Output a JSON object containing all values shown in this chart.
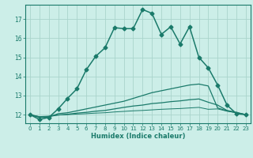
{
  "title": "",
  "xlabel": "Humidex (Indice chaleur)",
  "ylabel": "",
  "bg_color": "#cceee8",
  "line_color": "#1a7a6a",
  "grid_color": "#aad4cc",
  "xlim": [
    -0.5,
    23.5
  ],
  "ylim": [
    11.55,
    17.75
  ],
  "yticks": [
    12,
    13,
    14,
    15,
    16,
    17
  ],
  "xticks": [
    0,
    1,
    2,
    3,
    4,
    5,
    6,
    7,
    8,
    9,
    10,
    11,
    12,
    13,
    14,
    15,
    16,
    17,
    18,
    19,
    20,
    21,
    22,
    23
  ],
  "series": [
    {
      "x": [
        0,
        1,
        2,
        3,
        4,
        5,
        6,
        7,
        8,
        9,
        10,
        11,
        12,
        13,
        14,
        15,
        16,
        17,
        18,
        19,
        20,
        21,
        22,
        23
      ],
      "y": [
        12.0,
        11.75,
        11.85,
        12.3,
        12.85,
        13.35,
        14.35,
        15.05,
        15.5,
        16.55,
        16.5,
        16.5,
        17.5,
        17.3,
        16.2,
        16.6,
        15.7,
        16.6,
        15.0,
        14.45,
        13.55,
        12.5,
        12.05,
        12.0
      ],
      "marker": "D",
      "markersize": 2.5,
      "linewidth": 1.1,
      "linestyle": "-",
      "dotted_end": false
    },
    {
      "x": [
        0,
        1,
        2,
        3,
        4,
        5,
        6,
        7,
        8,
        9,
        10,
        11,
        12,
        13,
        14,
        15,
        16,
        17,
        18,
        19,
        20,
        21,
        22,
        23
      ],
      "y": [
        12.0,
        11.85,
        11.88,
        12.05,
        12.1,
        12.2,
        12.3,
        12.4,
        12.5,
        12.6,
        12.7,
        12.85,
        13.0,
        13.15,
        13.25,
        13.35,
        13.45,
        13.55,
        13.6,
        13.5,
        12.35,
        12.2,
        12.1,
        12.0
      ],
      "marker": null,
      "markersize": 0,
      "linewidth": 0.9,
      "linestyle": "-"
    },
    {
      "x": [
        0,
        1,
        2,
        3,
        4,
        5,
        6,
        7,
        8,
        9,
        10,
        11,
        12,
        13,
        14,
        15,
        16,
        17,
        18,
        19,
        20,
        21,
        22,
        23
      ],
      "y": [
        12.0,
        11.88,
        11.9,
        11.98,
        12.02,
        12.08,
        12.12,
        12.18,
        12.22,
        12.3,
        12.38,
        12.45,
        12.5,
        12.58,
        12.62,
        12.68,
        12.72,
        12.78,
        12.82,
        12.65,
        12.5,
        12.22,
        12.12,
        12.0
      ],
      "marker": null,
      "markersize": 0,
      "linewidth": 0.9,
      "linestyle": "-"
    },
    {
      "x": [
        0,
        1,
        2,
        3,
        4,
        5,
        6,
        7,
        8,
        9,
        10,
        11,
        12,
        13,
        14,
        15,
        16,
        17,
        18,
        19,
        20,
        21,
        22,
        23
      ],
      "y": [
        12.0,
        11.9,
        11.92,
        11.98,
        12.0,
        12.03,
        12.05,
        12.08,
        12.1,
        12.14,
        12.17,
        12.2,
        12.22,
        12.25,
        12.28,
        12.3,
        12.32,
        12.35,
        12.38,
        12.28,
        12.3,
        12.18,
        12.1,
        12.0
      ],
      "marker": null,
      "markersize": 0,
      "linewidth": 0.7,
      "linestyle": "-"
    }
  ]
}
